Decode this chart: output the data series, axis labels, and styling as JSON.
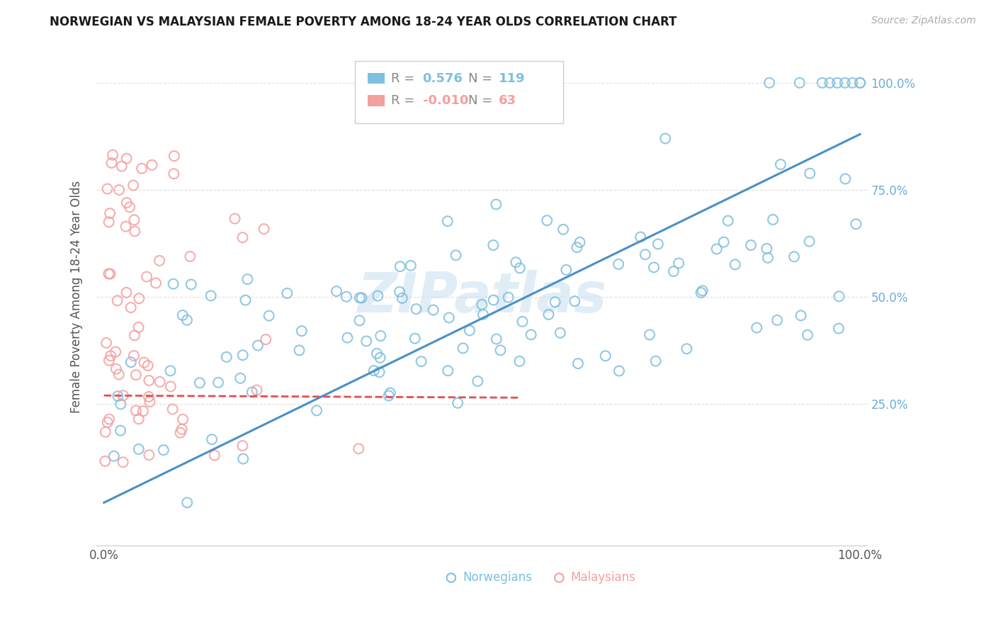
{
  "title": "NORWEGIAN VS MALAYSIAN FEMALE POVERTY AMONG 18-24 YEAR OLDS CORRELATION CHART",
  "source": "Source: ZipAtlas.com",
  "ylabel": "Female Poverty Among 18-24 Year Olds",
  "xlim": [
    -0.01,
    1.01
  ],
  "ylim": [
    -0.08,
    1.08
  ],
  "xtick_positions": [
    0.0,
    1.0
  ],
  "xtick_labels": [
    "0.0%",
    "100.0%"
  ],
  "ytick_positions": [
    0.25,
    0.5,
    0.75,
    1.0
  ],
  "ytick_labels": [
    "25.0%",
    "50.0%",
    "75.0%",
    "100.0%"
  ],
  "watermark": "ZIPatlas",
  "color_norwegian": "#7fbfdf",
  "color_malaysian": "#f4a0a0",
  "color_line_norwegian": "#4a90c8",
  "color_line_malaysian": "#e05050",
  "color_ytick": "#6aaed6",
  "color_grid": "#e0e0e0",
  "nor_line_y0": 0.02,
  "nor_line_y1": 0.88,
  "mal_line_y0": 0.27,
  "mal_line_y1": 0.265,
  "mal_line_x0": 0.0,
  "mal_line_x1": 0.55
}
